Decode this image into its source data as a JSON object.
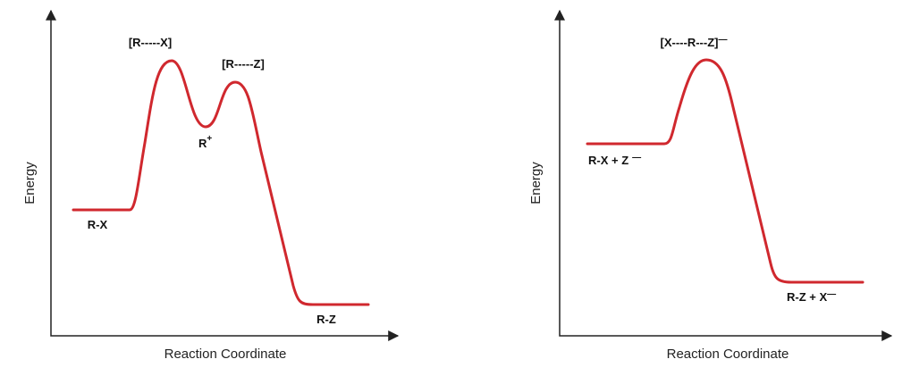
{
  "panels": [
    {
      "y_label": "Energy",
      "x_label": "Reaction Coordinate",
      "labels": [
        {
          "text": "[R-----X]"
        },
        {
          "text": "[R-----Z]"
        },
        {
          "text": "R",
          "sup": "+"
        },
        {
          "text": "R-X"
        },
        {
          "text": "R-Z"
        }
      ]
    },
    {
      "y_label": "Energy",
      "x_label": "Reaction Coordinate",
      "labels": [
        {
          "text": "[X----R---Z]",
          "sup": "—"
        },
        {
          "text": "R-X + Z",
          "sup": "—"
        },
        {
          "text": "R-Z + X",
          "sup": "—"
        }
      ]
    }
  ]
}
